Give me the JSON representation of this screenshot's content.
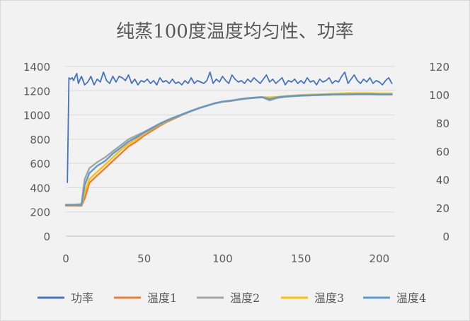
{
  "chart_data": {
    "type": "line",
    "title": "纯蒸100度温度均匀性、功率",
    "xlabel": "",
    "ylabel": "",
    "xlim": [
      0,
      210
    ],
    "ylim": [
      0,
      1400
    ],
    "y2lim": [
      0,
      120
    ],
    "x_ticks": [
      "0",
      "50",
      "100",
      "150",
      "200"
    ],
    "y_ticks": [
      "0",
      "200",
      "400",
      "600",
      "800",
      "1000",
      "1200",
      "1400"
    ],
    "y2_ticks": [
      "0",
      "20",
      "40",
      "60",
      "80",
      "100",
      "120"
    ],
    "grid": "horizontal",
    "legend_position": "bottom",
    "series": [
      {
        "name": "功率",
        "axis": "right",
        "color": "#4472c4",
        "x": [
          1,
          2,
          3,
          4,
          5,
          6,
          7,
          8,
          10,
          12,
          14,
          16,
          18,
          20,
          22,
          24,
          26,
          28,
          30,
          32,
          34,
          36,
          38,
          40,
          42,
          44,
          46,
          48,
          50,
          52,
          54,
          56,
          58,
          60,
          62,
          64,
          66,
          68,
          70,
          72,
          74,
          76,
          78,
          80,
          82,
          84,
          86,
          88,
          90,
          92,
          94,
          96,
          98,
          100,
          102,
          104,
          106,
          108,
          110,
          112,
          114,
          116,
          118,
          120,
          122,
          124,
          126,
          128,
          130,
          132,
          134,
          136,
          138,
          140,
          142,
          144,
          146,
          148,
          150,
          152,
          154,
          156,
          158,
          160,
          162,
          164,
          166,
          168,
          170,
          172,
          174,
          176,
          178,
          180,
          182,
          184,
          186,
          188,
          190,
          192,
          194,
          196,
          198,
          200,
          202,
          204,
          206,
          208
        ],
        "values": [
          38,
          112,
          111,
          112,
          110,
          113,
          115,
          108,
          113,
          107,
          109,
          113,
          107,
          111,
          109,
          116,
          110,
          108,
          113,
          109,
          113,
          112,
          110,
          114,
          108,
          111,
          107,
          110,
          109,
          111,
          108,
          110,
          107,
          112,
          109,
          110,
          108,
          111,
          108,
          109,
          107,
          110,
          108,
          112,
          108,
          110,
          109,
          108,
          110,
          116,
          108,
          111,
          109,
          113,
          110,
          108,
          114,
          111,
          109,
          110,
          108,
          111,
          109,
          112,
          110,
          108,
          111,
          114,
          109,
          111,
          108,
          110,
          112,
          107,
          110,
          109,
          111,
          108,
          110,
          108,
          112,
          109,
          110,
          107,
          111,
          109,
          110,
          112,
          108,
          110,
          109,
          113,
          116,
          108,
          111,
          114,
          110,
          108,
          111,
          109,
          112,
          108,
          110,
          109,
          107,
          110,
          112,
          108
        ]
      },
      {
        "name": "温度1",
        "axis": "left",
        "color": "#ed7d31",
        "x": [
          0,
          5,
          10,
          12,
          15,
          20,
          25,
          30,
          35,
          40,
          45,
          50,
          55,
          60,
          65,
          70,
          75,
          80,
          85,
          90,
          95,
          100,
          105,
          110,
          115,
          120,
          125,
          130,
          135,
          140,
          145,
          150,
          155,
          160,
          165,
          170,
          175,
          180,
          185,
          190,
          195,
          200,
          205,
          208
        ],
        "values": [
          250,
          250,
          250,
          310,
          440,
          500,
          560,
          620,
          680,
          740,
          780,
          830,
          870,
          910,
          945,
          975,
          1005,
          1030,
          1055,
          1075,
          1095,
          1108,
          1115,
          1125,
          1135,
          1140,
          1145,
          1140,
          1145,
          1150,
          1155,
          1160,
          1160,
          1163,
          1165,
          1168,
          1168,
          1170,
          1170,
          1170,
          1170,
          1168,
          1168,
          1168
        ]
      },
      {
        "name": "温度2",
        "axis": "left",
        "color": "#a5a5a5",
        "x": [
          0,
          5,
          10,
          12,
          15,
          20,
          25,
          30,
          35,
          40,
          45,
          50,
          55,
          60,
          65,
          70,
          75,
          80,
          85,
          90,
          95,
          100,
          105,
          110,
          115,
          120,
          125,
          130,
          135,
          140,
          145,
          150,
          155,
          160,
          165,
          170,
          175,
          180,
          185,
          190,
          195,
          200,
          205,
          208
        ],
        "values": [
          260,
          260,
          265,
          470,
          560,
          610,
          650,
          700,
          750,
          800,
          830,
          860,
          895,
          930,
          960,
          985,
          1010,
          1035,
          1058,
          1078,
          1097,
          1110,
          1118,
          1128,
          1138,
          1143,
          1148,
          1120,
          1140,
          1150,
          1155,
          1158,
          1160,
          1163,
          1165,
          1167,
          1168,
          1168,
          1170,
          1170,
          1170,
          1168,
          1168,
          1168
        ]
      },
      {
        "name": "温度3",
        "axis": "left",
        "color": "#ffc000",
        "x": [
          0,
          5,
          10,
          12,
          15,
          20,
          25,
          30,
          35,
          40,
          45,
          50,
          55,
          60,
          65,
          70,
          75,
          80,
          85,
          90,
          95,
          100,
          105,
          110,
          115,
          120,
          125,
          130,
          135,
          140,
          145,
          150,
          155,
          160,
          165,
          170,
          175,
          180,
          185,
          190,
          195,
          200,
          205,
          208
        ],
        "values": [
          255,
          255,
          258,
          360,
          470,
          530,
          590,
          650,
          710,
          760,
          800,
          850,
          885,
          920,
          950,
          980,
          1008,
          1032,
          1057,
          1077,
          1096,
          1110,
          1118,
          1128,
          1137,
          1143,
          1148,
          1145,
          1150,
          1155,
          1160,
          1165,
          1168,
          1170,
          1172,
          1175,
          1177,
          1180,
          1180,
          1180,
          1180,
          1178,
          1178,
          1178
        ]
      },
      {
        "name": "温度4",
        "axis": "left",
        "color": "#5b9bd5",
        "x": [
          0,
          5,
          10,
          12,
          15,
          20,
          25,
          30,
          35,
          40,
          45,
          50,
          55,
          60,
          65,
          70,
          75,
          80,
          85,
          90,
          95,
          100,
          105,
          110,
          115,
          120,
          125,
          130,
          135,
          140,
          145,
          150,
          155,
          160,
          165,
          170,
          175,
          180,
          185,
          190,
          195,
          200,
          205,
          208
        ],
        "values": [
          258,
          258,
          260,
          420,
          520,
          580,
          620,
          680,
          730,
          780,
          815,
          855,
          890,
          925,
          955,
          982,
          1008,
          1033,
          1056,
          1076,
          1096,
          1110,
          1117,
          1127,
          1136,
          1142,
          1147,
          1130,
          1145,
          1152,
          1156,
          1160,
          1162,
          1165,
          1167,
          1169,
          1170,
          1170,
          1172,
          1172,
          1172,
          1170,
          1170,
          1170
        ]
      }
    ]
  }
}
